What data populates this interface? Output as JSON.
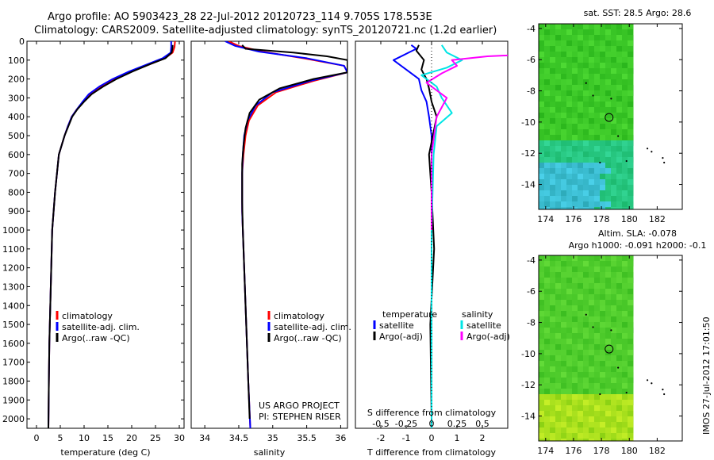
{
  "header": {
    "line1": "Argo profile: AO 5903423_28 22-Jul-2012 20120723_114 9.705S 178.553E",
    "line2": "Climatology: CARS2009. Satellite-adjusted climatology: synTS_20120721.nc (1.2d earlier)"
  },
  "side_label": "IMOS 27-Jul-2012 17:01:50",
  "project_note": [
    "US ARGO PROJECT",
    "PI: STEPHEN RISER"
  ],
  "colors": {
    "climatology": "#ff0000",
    "satellite": "#0000ff",
    "argo": "#000000",
    "salinity_satellite": "#00e5e5",
    "salinity_argo": "#ff00ff"
  },
  "chart_data": [
    {
      "id": "temperature",
      "type": "line",
      "xlabel": "temperature (deg C)",
      "ylabel": "",
      "xlim": [
        -2,
        31
      ],
      "ylim": [
        2050,
        0
      ],
      "xticks": [
        0,
        5,
        10,
        15,
        20,
        25,
        30
      ],
      "yticks": [
        0,
        100,
        200,
        300,
        400,
        500,
        600,
        700,
        800,
        900,
        1000,
        1100,
        1200,
        1300,
        1400,
        1500,
        1600,
        1700,
        1800,
        1900,
        2000
      ],
      "legend": [
        "climatology",
        "satellite-adj. clim.",
        "Argo(..raw -QC)"
      ],
      "legend_position": "lower-center",
      "series": [
        {
          "name": "climatology",
          "x": [
            29.1,
            29.0,
            28.6,
            27.0,
            24.0,
            20.0,
            16.5,
            13.5,
            11.2,
            9.8,
            8.5,
            7.4,
            6.6,
            5.9,
            5.3,
            4.7,
            4.3,
            3.9,
            3.6,
            3.3,
            3.1,
            2.9,
            2.7,
            2.6,
            2.5
          ],
          "y": [
            0,
            30,
            60,
            90,
            120,
            160,
            200,
            240,
            280,
            320,
            360,
            400,
            450,
            500,
            550,
            600,
            700,
            800,
            900,
            1000,
            1200,
            1400,
            1600,
            1800,
            2050
          ]
        },
        {
          "name": "satellite-adj. clim.",
          "x": [
            28.3,
            28.3,
            28.2,
            26.5,
            23.5,
            19.5,
            16.0,
            13.2,
            11.0,
            9.7,
            8.5,
            7.4,
            6.6,
            5.9,
            5.3,
            4.7,
            4.3,
            3.9,
            3.6,
            3.3,
            3.1,
            2.9,
            2.7,
            2.6,
            2.5
          ],
          "y": [
            0,
            30,
            60,
            90,
            120,
            160,
            200,
            240,
            280,
            320,
            360,
            400,
            450,
            500,
            550,
            600,
            700,
            800,
            900,
            1000,
            1200,
            1400,
            1600,
            1800,
            2050
          ]
        },
        {
          "name": "Argo(..raw -QC)",
          "x": [
            28.6,
            28.6,
            28.4,
            27.1,
            24.0,
            20.2,
            16.8,
            14.0,
            11.6,
            10.0,
            8.6,
            7.5,
            6.7,
            5.9,
            5.3,
            4.7,
            4.3,
            3.9,
            3.6,
            3.3,
            3.1,
            2.9,
            2.7,
            2.6,
            2.5
          ],
          "y": [
            20,
            30,
            60,
            90,
            120,
            160,
            200,
            240,
            280,
            320,
            360,
            400,
            450,
            500,
            550,
            600,
            700,
            800,
            900,
            1000,
            1200,
            1400,
            1600,
            1800,
            2050
          ]
        }
      ]
    },
    {
      "id": "salinity",
      "type": "line",
      "xlabel": "salinity",
      "ylabel": "",
      "xlim": [
        33.8,
        36.1
      ],
      "ylim": [
        2050,
        0
      ],
      "xticks": [
        34,
        34.5,
        35,
        35.5,
        36
      ],
      "xticklabels": [
        "34",
        "34.5",
        "35",
        "35.5",
        "36"
      ],
      "legend": [
        "climatology",
        "satellite-adj. clim.",
        "Argo(..raw -QC)"
      ],
      "legend_position": "lower-center",
      "series": [
        {
          "name": "climatology",
          "x": [
            34.35,
            34.5,
            34.85,
            35.45,
            36.05,
            36.1,
            35.6,
            35.05,
            34.78,
            34.65,
            34.6,
            34.57,
            34.55,
            34.55,
            34.55,
            34.56,
            34.58,
            34.6,
            34.62,
            34.64,
            34.67
          ],
          "y": [
            0,
            25,
            55,
            90,
            130,
            165,
            210,
            270,
            340,
            420,
            500,
            600,
            700,
            800,
            900,
            1000,
            1200,
            1400,
            1600,
            1800,
            2050
          ]
        },
        {
          "name": "satellite-adj. clim.",
          "x": [
            34.3,
            34.45,
            34.8,
            35.5,
            36.05,
            36.1,
            35.55,
            35.0,
            34.75,
            34.63,
            34.58,
            34.56,
            34.55,
            34.55,
            34.55,
            34.56,
            34.58,
            34.6,
            34.62,
            34.64,
            34.67
          ],
          "y": [
            0,
            25,
            55,
            90,
            130,
            165,
            210,
            270,
            340,
            420,
            500,
            600,
            700,
            800,
            900,
            1000,
            1200,
            1400,
            1600,
            1800,
            2050
          ]
        },
        {
          "name": "Argo(..raw -QC)",
          "x": [
            34.55,
            34.6,
            35.3,
            35.8,
            36.1,
            36.1,
            36.1,
            35.6,
            35.1,
            34.8,
            34.66,
            34.6,
            34.57,
            34.55,
            34.55,
            34.55,
            34.56,
            34.58,
            34.6,
            34.62,
            34.64,
            34.66
          ],
          "y": [
            20,
            40,
            60,
            80,
            100,
            130,
            165,
            200,
            250,
            310,
            380,
            460,
            550,
            650,
            750,
            850,
            1000,
            1200,
            1400,
            1600,
            1800,
            2000
          ]
        }
      ]
    },
    {
      "id": "differences",
      "type": "line",
      "xlabel": "T difference from climatology",
      "x2label": "S difference from climatology",
      "xlim": [
        -3,
        3
      ],
      "x2lim": [
        -0.75,
        0.75
      ],
      "ylim": [
        2050,
        0
      ],
      "xticks": [
        -2,
        -1,
        0,
        1,
        2
      ],
      "x2ticks": [
        -0.5,
        -0.25,
        0,
        0.25,
        0.5
      ],
      "x2ticklabels": [
        "-0.5",
        "-0.25",
        "0",
        "0.25",
        "0.5"
      ],
      "legend_groups": [
        {
          "title": "temperature",
          "entries": [
            "satellite",
            "Argo(-adj)"
          ]
        },
        {
          "title": "salinity",
          "entries": [
            "satellite",
            "Argo(-adj)"
          ]
        }
      ],
      "series": [
        {
          "name": "temperature satellite",
          "x": [
            -0.8,
            -0.6,
            -0.9,
            -1.5,
            -1.1,
            -0.5,
            -0.4,
            -0.2,
            -0.1,
            0.0,
            0.0,
            0.0,
            0.0,
            0.0
          ],
          "y": [
            20,
            40,
            60,
            100,
            140,
            200,
            260,
            320,
            400,
            500,
            700,
            1000,
            1500,
            2050
          ]
        },
        {
          "name": "temperature Argo(-adj)",
          "x": [
            -0.5,
            -0.6,
            -0.3,
            -0.4,
            -0.2,
            -0.1,
            0.0,
            0.2,
            0.05,
            -0.1,
            0.0,
            0.1,
            -0.05,
            0.0
          ],
          "y": [
            20,
            50,
            100,
            150,
            200,
            250,
            320,
            400,
            500,
            600,
            800,
            1100,
            1500,
            2000
          ]
        },
        {
          "name": "salinity satellite",
          "x": [
            0.1,
            0.15,
            0.3,
            0.15,
            -0.1,
            0.05,
            0.1,
            0.2,
            0.05,
            0.02,
            0.0,
            0.0
          ],
          "y": [
            20,
            60,
            100,
            140,
            180,
            240,
            300,
            380,
            450,
            600,
            1000,
            2050
          ]
        },
        {
          "name": "salinity Argo(-adj)",
          "x": [
            0.95,
            0.55,
            0.2,
            0.25,
            0.1,
            -0.05,
            0.15,
            0.05,
            0.0,
            0.0
          ],
          "y": [
            70,
            80,
            100,
            130,
            170,
            220,
            300,
            400,
            600,
            1000
          ]
        }
      ]
    },
    {
      "id": "sst-map",
      "type": "heatmap",
      "title": "sat. SST: 28.5  Argo: 28.6",
      "xlim": [
        173.5,
        183.8
      ],
      "ylim": [
        -15.6,
        -3.7
      ],
      "xticks": [
        174,
        176,
        178,
        180,
        182
      ],
      "yticks": [
        -4,
        -6,
        -8,
        -10,
        -12,
        -14
      ],
      "data_extent": {
        "lon": [
          173.5,
          180.3
        ],
        "lat": [
          -15.6,
          -3.7
        ]
      },
      "argo_position": {
        "lon": 178.55,
        "lat": -9.705
      }
    },
    {
      "id": "sla-map",
      "type": "heatmap",
      "title": "Altim. SLA: -0.078",
      "subtitle": "Argo h1000: -0.091 h2000: -0.1",
      "xlim": [
        173.5,
        183.8
      ],
      "ylim": [
        -15.6,
        -3.7
      ],
      "xticks": [
        174,
        176,
        178,
        180,
        182
      ],
      "yticks": [
        -4,
        -6,
        -8,
        -10,
        -12,
        -14
      ],
      "data_extent": {
        "lon": [
          173.5,
          180.3
        ],
        "lat": [
          -15.6,
          -3.7
        ]
      },
      "argo_position": {
        "lon": 178.55,
        "lat": -9.705
      }
    }
  ]
}
